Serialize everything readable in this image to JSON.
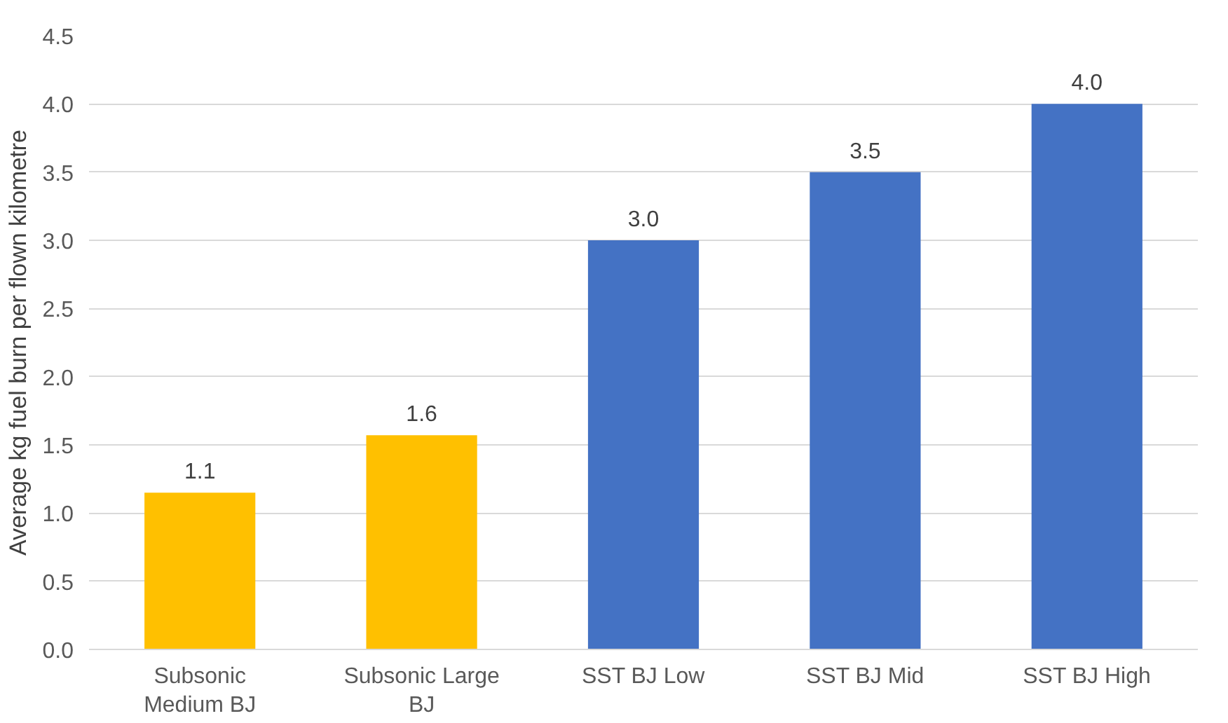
{
  "chart_data": {
    "type": "bar",
    "ylabel": "Average kg fuel burn per flown kilometre",
    "categories": [
      "Subsonic Medium BJ",
      "Subsonic Large BJ",
      "SST BJ Low",
      "SST BJ Mid",
      "SST BJ High"
    ],
    "values": [
      1.15,
      1.57,
      3.0,
      3.5,
      4.0
    ],
    "value_labels": [
      "1.1",
      "1.6",
      "3.0",
      "3.5",
      "4.0"
    ],
    "colors": [
      "#ffc000",
      "#ffc000",
      "#4472c4",
      "#4472c4",
      "#4472c4"
    ],
    "ylim": [
      0,
      4.5
    ],
    "yticks": [
      {
        "value": 0,
        "label": "0.0"
      },
      {
        "value": 0.5,
        "label": "0.5"
      },
      {
        "value": 1,
        "label": "1.0"
      },
      {
        "value": 1.5,
        "label": "1.5"
      },
      {
        "value": 2,
        "label": "2.0"
      },
      {
        "value": 2.5,
        "label": "2.5"
      },
      {
        "value": 3,
        "label": "3.0"
      },
      {
        "value": 3.5,
        "label": "3.5"
      },
      {
        "value": 4,
        "label": "4.0"
      },
      {
        "value": 4.5,
        "label": "4.5"
      }
    ],
    "grid": "y"
  }
}
